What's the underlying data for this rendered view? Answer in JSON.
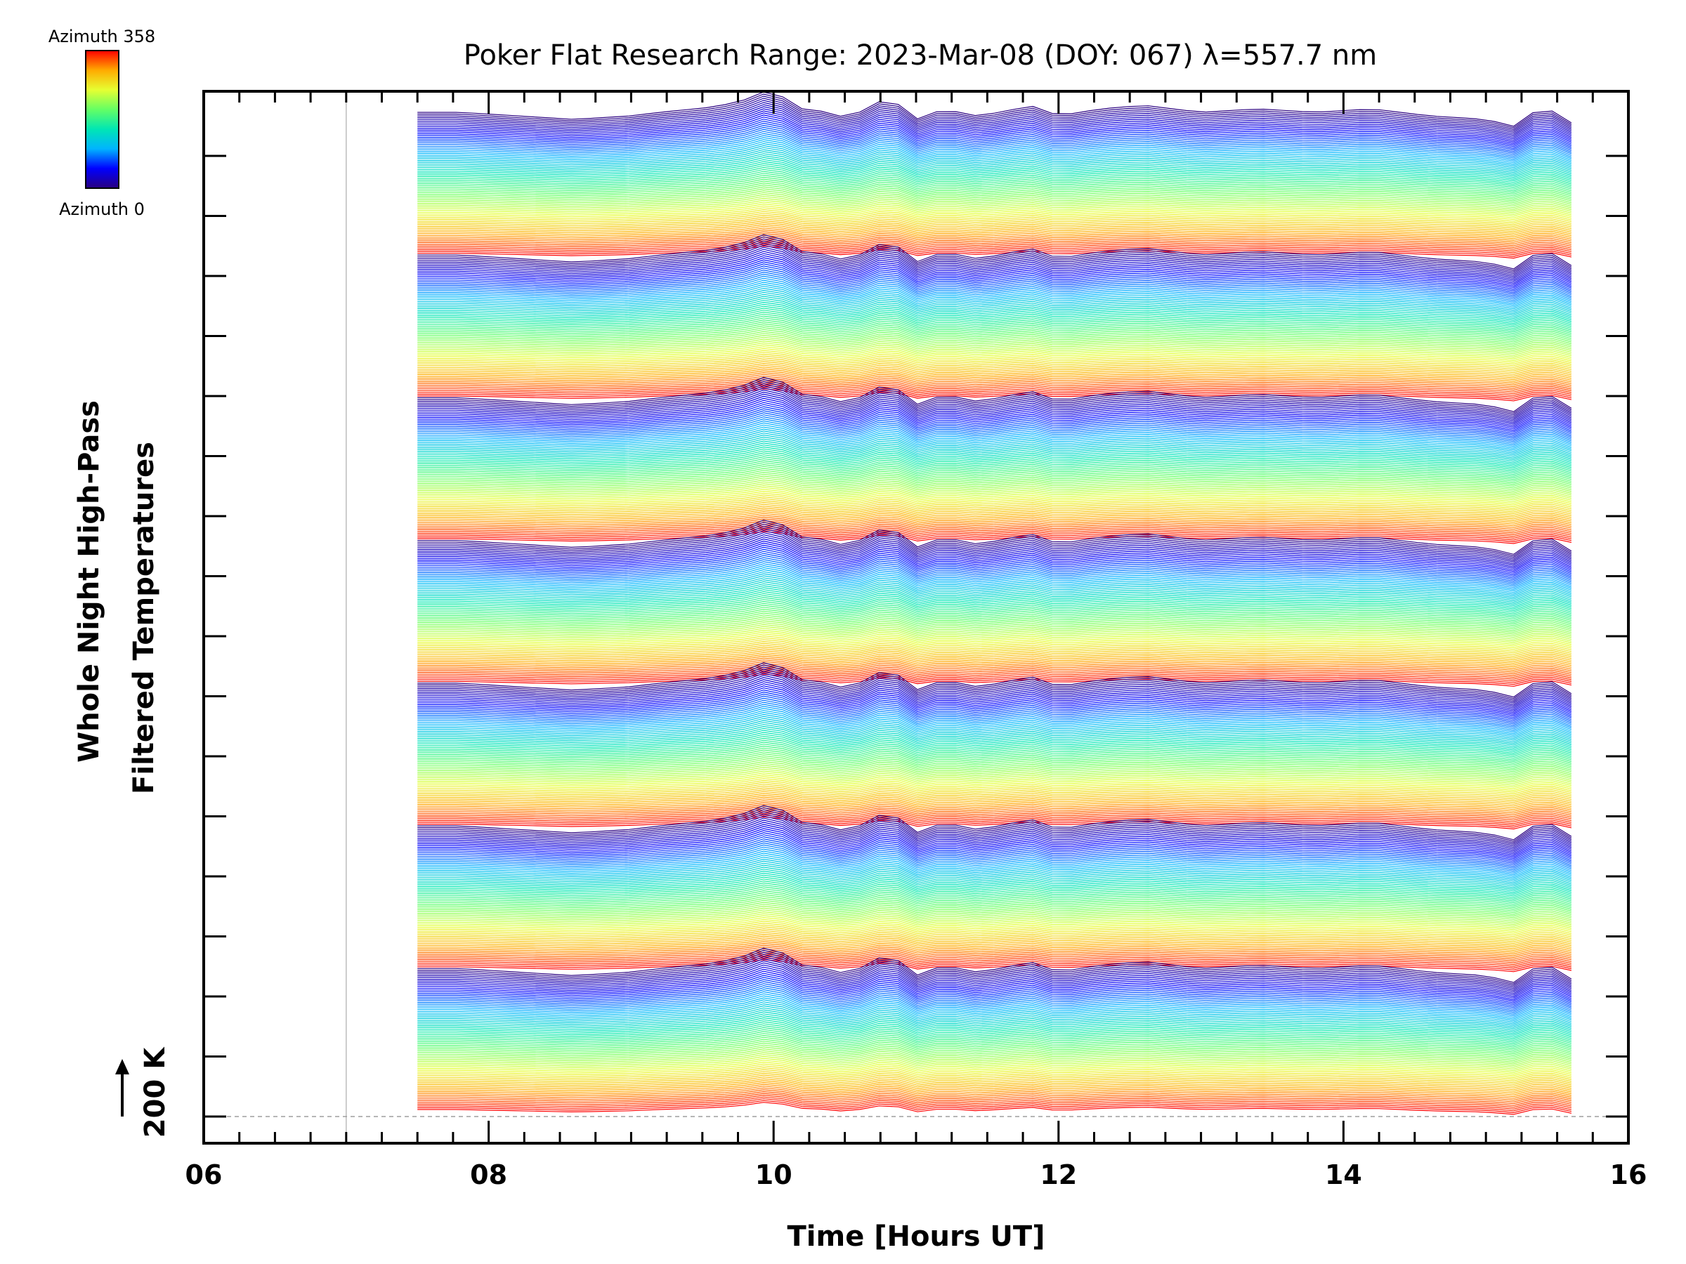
{
  "chart_data": {
    "type": "line",
    "title": "Poker Flat Research Range: 2023-Mar-08 (DOY: 067) λ=557.7 nm",
    "xlabel": "Time [Hours UT]",
    "ylabel": [
      "Whole Night High-Pass",
      "Filtered Temperatures"
    ],
    "scale_label": "200 K",
    "xlim": [
      6,
      16
    ],
    "x_tick_labels": [
      "06",
      "08",
      "10",
      "12",
      "14",
      "16"
    ],
    "x_major_ticks": [
      6,
      8,
      10,
      12,
      14,
      16
    ],
    "x_minor_step": 0.25,
    "y_major_tick_count": 17,
    "reference_lines_x": [
      7
    ],
    "colorbar": {
      "min_label": "Azimuth 0",
      "max_label": "Azimuth 358",
      "colormap": "rainbow",
      "colors": [
        "#2a0080",
        "#0000ff",
        "#00b4ff",
        "#00e6b4",
        "#64ff64",
        "#e6ff32",
        "#ffaa00",
        "#ff0000"
      ]
    },
    "series_count": 560,
    "group_count": 7,
    "group_sizes": [
      80,
      80,
      80,
      80,
      80,
      80,
      80
    ],
    "group_azimuth_range": [
      0,
      358
    ],
    "time_start": 7.5,
    "time_end": 15.6,
    "common_variation": {
      "x": [
        7.5,
        7.8,
        8.2,
        8.6,
        9.0,
        9.2,
        9.6,
        9.8,
        10.0,
        10.1,
        10.2,
        10.4,
        10.5,
        10.6,
        10.7,
        10.8,
        10.9,
        11.0,
        11.2,
        11.4,
        11.6,
        11.8,
        12.0,
        12.3,
        12.6,
        13.0,
        13.4,
        13.8,
        14.2,
        14.6,
        15.0,
        15.2,
        15.4,
        15.6
      ],
      "y_K": [
        0,
        0,
        -5,
        -10,
        -5,
        0,
        8,
        18,
        35,
        15,
        5,
        0,
        -8,
        0,
        5,
        30,
        5,
        -10,
        5,
        -5,
        0,
        10,
        -5,
        5,
        10,
        0,
        5,
        0,
        5,
        -5,
        -10,
        -20,
        10,
        -15
      ]
    },
    "grid": false,
    "legend": "none"
  },
  "colors": {
    "axis": "#000000",
    "reference_line": "#bdbdbd",
    "baseline": "#9e9e9e"
  }
}
